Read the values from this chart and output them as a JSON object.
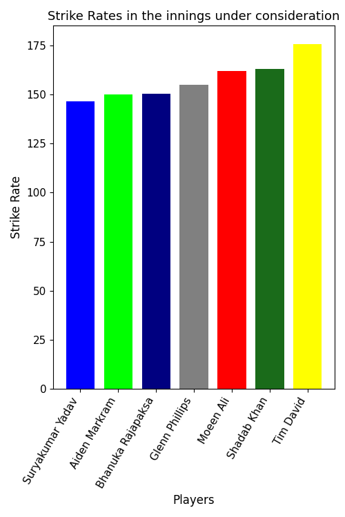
{
  "players": [
    "Suryakumar Yadav",
    "Aiden Markram",
    "Bhanuka Rajapaksa",
    "Glenn Phillips",
    "Moeen Ali",
    "Shadab Khan",
    "Tim David"
  ],
  "strike_rates": [
    146.5,
    150.0,
    150.5,
    155.0,
    162.0,
    163.0,
    175.5
  ],
  "bar_colors": [
    "#0000FF",
    "#00FF00",
    "#000080",
    "#808080",
    "#FF0000",
    "#1A6B1A",
    "#FFFF00"
  ],
  "title": "Strike Rates in the innings under consideration",
  "xlabel": "Players",
  "ylabel": "Strike Rate",
  "ylim": [
    0,
    185
  ],
  "yticks": [
    0,
    25,
    50,
    75,
    100,
    125,
    150,
    175
  ],
  "background_color": "#ffffff",
  "title_fontsize": 13,
  "label_fontsize": 12,
  "tick_fontsize": 11,
  "bar_width": 0.75,
  "rotation": 60
}
